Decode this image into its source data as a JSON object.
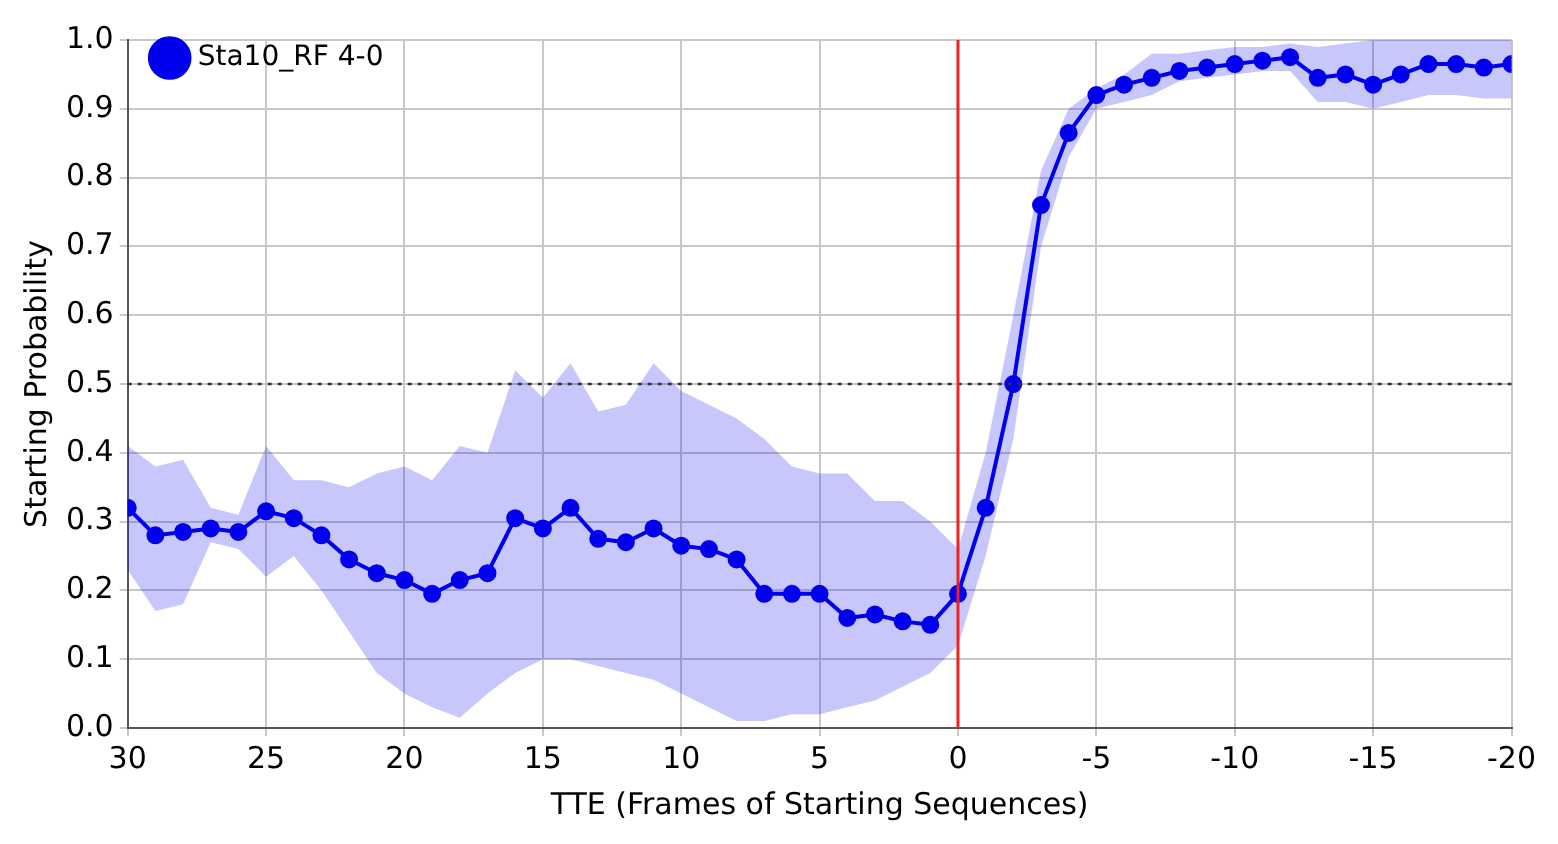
{
  "chart_data": {
    "type": "line",
    "xlabel": "TTE (Frames of Starting Sequences)",
    "ylabel": "Starting Probability",
    "x": [
      30,
      29,
      28,
      27,
      26,
      25,
      24,
      23,
      22,
      21,
      20,
      19,
      18,
      17,
      16,
      15,
      14,
      13,
      12,
      11,
      10,
      9,
      8,
      7,
      6,
      5,
      4,
      3,
      2,
      1,
      0,
      -1,
      -2,
      -3,
      -4,
      -5,
      -6,
      -7,
      -8,
      -9,
      -10,
      -11,
      -12,
      -13,
      -14,
      -15,
      -16,
      -17,
      -18,
      -19,
      -20
    ],
    "series": [
      {
        "name": "Sta10_RF 4-0",
        "color": "#0000ee",
        "values": [
          0.32,
          0.28,
          0.285,
          0.29,
          0.285,
          0.315,
          0.305,
          0.28,
          0.245,
          0.225,
          0.215,
          0.195,
          0.215,
          0.225,
          0.305,
          0.29,
          0.32,
          0.275,
          0.27,
          0.29,
          0.265,
          0.26,
          0.245,
          0.195,
          0.195,
          0.195,
          0.16,
          0.165,
          0.155,
          0.15,
          0.195,
          0.32,
          0.5,
          0.76,
          0.865,
          0.92,
          0.935,
          0.945,
          0.955,
          0.96,
          0.965,
          0.97,
          0.975,
          0.945,
          0.95,
          0.935,
          0.95,
          0.965,
          0.965,
          0.96,
          0.965
        ],
        "lower": [
          0.23,
          0.17,
          0.18,
          0.27,
          0.26,
          0.22,
          0.25,
          0.2,
          0.14,
          0.08,
          0.05,
          0.03,
          0.015,
          0.05,
          0.08,
          0.1,
          0.1,
          0.09,
          0.08,
          0.07,
          0.05,
          0.03,
          0.01,
          0.01,
          0.02,
          0.02,
          0.03,
          0.04,
          0.06,
          0.08,
          0.12,
          0.25,
          0.42,
          0.7,
          0.83,
          0.9,
          0.91,
          0.92,
          0.94,
          0.945,
          0.95,
          0.955,
          0.955,
          0.91,
          0.91,
          0.9,
          0.91,
          0.92,
          0.92,
          0.915,
          0.915
        ],
        "upper": [
          0.41,
          0.38,
          0.39,
          0.32,
          0.31,
          0.41,
          0.36,
          0.36,
          0.35,
          0.37,
          0.38,
          0.36,
          0.41,
          0.4,
          0.52,
          0.48,
          0.53,
          0.46,
          0.47,
          0.53,
          0.49,
          0.47,
          0.45,
          0.42,
          0.38,
          0.37,
          0.37,
          0.33,
          0.33,
          0.3,
          0.26,
          0.4,
          0.6,
          0.81,
          0.9,
          0.93,
          0.95,
          0.98,
          0.98,
          0.985,
          0.99,
          0.99,
          0.995,
          0.99,
          0.995,
          1.0,
          1.0,
          1.0,
          1.0,
          1.0,
          1.0
        ]
      }
    ],
    "xlim": [
      30,
      -20
    ],
    "xticks": [
      30,
      25,
      20,
      15,
      10,
      5,
      0,
      -5,
      -10,
      -15,
      -20
    ],
    "ylim": [
      0,
      1
    ],
    "yticks": [
      {
        "value": 0,
        "label": "0.0"
      },
      {
        "value": 0.1,
        "label": "0.1"
      },
      {
        "value": 0.2,
        "label": "0.2"
      },
      {
        "value": 0.3,
        "label": "0.3"
      },
      {
        "value": 0.4,
        "label": "0.4"
      },
      {
        "value": 0.5,
        "label": "0.5"
      },
      {
        "value": 0.6,
        "label": "0.6"
      },
      {
        "value": 0.7,
        "label": "0.7"
      },
      {
        "value": 0.8,
        "label": "0.8"
      },
      {
        "value": 0.9,
        "label": "0.9"
      },
      {
        "value": 1,
        "label": "1.0"
      }
    ],
    "ref_lines": [
      {
        "axis": "y",
        "value": 0.5,
        "color": "#333333",
        "line_style": "dotted"
      },
      {
        "axis": "x",
        "value": 0,
        "color": "#ee2222",
        "line_style": "solid"
      }
    ],
    "grid": true,
    "legend": "top left",
    "marker": "circle",
    "line_style": "solid"
  }
}
